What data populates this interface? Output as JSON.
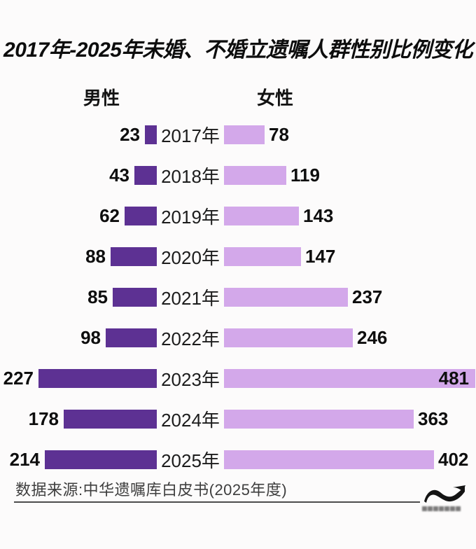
{
  "title": "2017年-2025年未婚、不婚立遗嘱人群性别比例变化",
  "legend": {
    "male": "男性",
    "female": "女性"
  },
  "source": "数据来源:中华遗嘱库白皮书(2025年度)",
  "icons": {
    "logo": "wave-tilde-icon"
  },
  "colors": {
    "male_bar": "#5d3193",
    "female_bar": "#d3a8ea",
    "text": "#111111",
    "source_text": "#3e3e3e",
    "background": "#fcfbfb"
  },
  "chart_data": {
    "type": "bar",
    "variant": "diverging-horizontal",
    "title": "2017年-2025年未婚、不婚立遗嘱人群性别比例变化",
    "categories": [
      "2017年",
      "2018年",
      "2019年",
      "2020年",
      "2021年",
      "2022年",
      "2023年",
      "2024年",
      "2025年"
    ],
    "series": [
      {
        "name": "男性",
        "side": "left",
        "color": "#5d3193",
        "values": [
          23,
          43,
          62,
          88,
          85,
          98,
          227,
          178,
          214
        ]
      },
      {
        "name": "女性",
        "side": "right",
        "color": "#d3a8ea",
        "values": [
          78,
          119,
          143,
          147,
          237,
          246,
          481,
          363,
          402
        ]
      }
    ],
    "value_labels": "outside-ends (inside bar when bar reaches edge)",
    "axis": "none",
    "gridlines": false,
    "legend_position": "top"
  }
}
